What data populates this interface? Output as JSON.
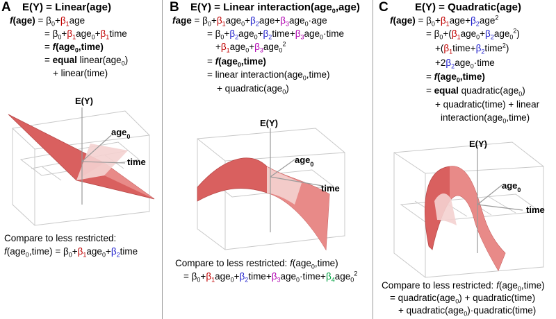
{
  "colors": {
    "surface": "#d9605f",
    "surface_light": "#f4d2d0",
    "beta1": "#c00000",
    "beta2": "#1f1fcc",
    "beta3": "#b000b0",
    "beta4": "#00a040"
  },
  "panels": {
    "a": {
      "label": "A",
      "title": "E(Y) = Linear(age)",
      "f": "f",
      "age": "(age)",
      "eq": "= ",
      "b0": "β",
      "s0": "0",
      "plus": "+",
      "b1": "β",
      "s1": "1",
      "age_txt": "age",
      "l2_b0": "= β",
      "l2_s0": "0",
      "l2_plus1": "+",
      "l2_b1": "β",
      "l2_s1": "1",
      "l2_age0": "age",
      "l2_sub0": "0",
      "l2_plus2": "+",
      "l2_b1b": "β",
      "l2_s1b": "1",
      "l2_time": "time",
      "l3_eq": "= ",
      "l3_f": "f",
      "l3_rest": "(age",
      "l3_sub": "0",
      "l3_close": ",time)",
      "l4_eq": "= ",
      "l4_equal": "equal",
      "l4_rest": " linear(age",
      "l4_sub": "0",
      "l4_close": ")",
      "l5": "+ linear(time)",
      "axis_y": "E(Y)",
      "axis_age": "age",
      "axis_age_sub": "0",
      "axis_time": "time",
      "cmp_line": "Compare to less restricted:",
      "cmp_f": "f",
      "cmp_a": "(age",
      "cmp_sub": "0",
      "cmp_b": ",time) = β",
      "cmp_s0": "0",
      "cmp_plus1": "+",
      "cmp_b1": "β",
      "cmp_s1": "1",
      "cmp_age": "age",
      "cmp_sub2": "0",
      "cmp_plus2": "+",
      "cmp_b2": "β",
      "cmp_s2": "2",
      "cmp_time": "time"
    },
    "b": {
      "label": "B",
      "title_a": "E(Y) = Linear interaction(age",
      "title_sub": "0",
      "title_b": ",age)",
      "f": "f",
      "age": "age",
      "eq": " = β",
      "s0": "0",
      "plus1": "+",
      "b1": "β",
      "s1": "1",
      "age0": "age",
      "sub0": "0",
      "plus2": "+",
      "b2": "β",
      "s2": "2",
      "plus3": "+",
      "b3": "β",
      "s3": "3",
      "age0b": "age",
      "sub0b": "0",
      "dotage": "·age",
      "l2_eq": "= β",
      "l2_s0": "0",
      "l2_plus1": "+",
      "l2_b2": "β",
      "l2_s2": "2",
      "l2_age0": "age",
      "l2_sub0": "0",
      "l2_plus2": "+",
      "l2_b2b": "β",
      "l2_s2b": "2",
      "l2_time": "time",
      "l2_plus3": "+",
      "l2_b3": "β",
      "l2_s3": "3",
      "l2_age0b": "age",
      "l2_sub0b": "0",
      "l2_dottime": "·time",
      "l3_plus1": "+",
      "l3_b1": "β",
      "l3_s1": "1",
      "l3_age0": "age",
      "l3_sub0": "0",
      "l3_plus2": "+",
      "l3_b3": "β",
      "l3_s3": "3",
      "l3_age0b": "age",
      "l3_sub0b": "0",
      "l3_sup": "2",
      "l4_eq": "= ",
      "l4_f": "f",
      "l4_rest": "(age",
      "l4_sub": "0",
      "l4_close": ",time)",
      "l5_a": "= linear interaction(age",
      "l5_sub": "0",
      "l5_b": ",time)",
      "l6_a": "+ quadratic(age",
      "l6_sub": "0",
      "l6_b": ")",
      "axis_y": "E(Y)",
      "axis_age": "age",
      "axis_age_sub": "0",
      "axis_time": "time",
      "cmp1_a": "Compare to less restricted: ",
      "cmp1_f": "f",
      "cmp1_b": "(age",
      "cmp1_sub": "0",
      "cmp1_c": ",time)",
      "cmp2_eq": "= β",
      "cmp2_s0": "0",
      "cmp2_p1": "+",
      "cmp2_b1": "β",
      "cmp2_s1": "1",
      "cmp2_age0": "age",
      "cmp2_sub0": "0",
      "cmp2_p2": "+",
      "cmp2_b2": "β",
      "cmp2_s2": "2",
      "cmp2_time": "time",
      "cmp2_p3": "+",
      "cmp2_b3": "β",
      "cmp2_s3": "3",
      "cmp2_age0b": "age",
      "cmp2_sub0b": "0",
      "cmp2_dt": "·time+",
      "cmp2_b4": "β",
      "cmp2_s4": "4",
      "cmp2_age0c": "age",
      "cmp2_sub0c": "0",
      "cmp2_sup": "2"
    },
    "c": {
      "label": "C",
      "title": "E(Y) = Quadratic(age)",
      "f": "f",
      "age": "(age)",
      "eq": " = β",
      "s0": "0",
      "plus1": "+",
      "b1": "β",
      "s1": "1",
      "age_a": "age",
      "plus2": "+",
      "b2": "β",
      "s2": "2",
      "age_b": "age",
      "sup": "2",
      "l2_eq": "= β",
      "l2_s0": "0",
      "l2_plus": "+(",
      "l2_b1": "β",
      "l2_s1": "1",
      "l2_age0": "age",
      "l2_sub0": "0",
      "l2_plus2": "+",
      "l2_b2": "β",
      "l2_s2": "2",
      "l2_age0b": "age",
      "l2_sub0b": "0",
      "l2_sup": "2",
      "l2_close": ")",
      "l3_open": "+(",
      "l3_b1": "β",
      "l3_s1": "1",
      "l3_time": "time",
      "l3_plus": "+",
      "l3_b2": "β",
      "l3_s2": "2",
      "l3_time2": "time",
      "l3_sup": "2",
      "l3_close": ")",
      "l4_a": "+2",
      "l4_b2": "β",
      "l4_s2": "2",
      "l4_age0": "age",
      "l4_sub0": "0",
      "l4_dt": "·time",
      "l5_eq": "= ",
      "l5_f": "f",
      "l5_rest": "(age",
      "l5_sub": "0",
      "l5_close": ",time)",
      "l6_eq": "= ",
      "l6_equal": "equal",
      "l6_a": " quadratic(age",
      "l6_sub": "0",
      "l6_b": ")",
      "l7": "+ quadratic(time) + linear",
      "l8_a": "interaction(age",
      "l8_sub": "0",
      "l8_b": ",time)",
      "axis_y": "E(Y)",
      "axis_age": "age",
      "axis_age_sub": "0",
      "axis_time": "time",
      "cmp1_a": "Compare to less restricted: ",
      "cmp1_f": "f",
      "cmp1_b": "(age",
      "cmp1_sub": "0",
      "cmp1_c": ",time)",
      "cmp2_a": "= quadratic(age",
      "cmp2_sub": "0",
      "cmp2_b": ") + quadratic(time)",
      "cmp3_a": "+ quadratic(age",
      "cmp3_sub": "0",
      "cmp3_b": ")·quadratic(time)"
    }
  }
}
